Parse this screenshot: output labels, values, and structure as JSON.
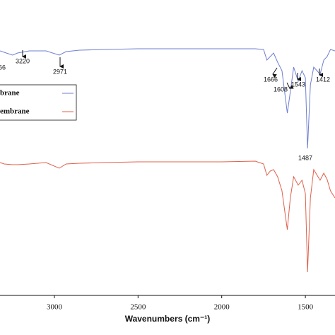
{
  "chart_data": {
    "type": "line",
    "xlabel": "Wavenumbers (cm⁻¹)",
    "x": [
      3325,
      3300,
      3250,
      3220,
      3150,
      3050,
      2971,
      2930,
      2850,
      2700,
      2500,
      2000,
      1800,
      1750,
      1730,
      1710,
      1690,
      1666,
      1640,
      1608,
      1590,
      1570,
      1543,
      1520,
      1500,
      1487,
      1470,
      1450,
      1412,
      1390,
      1370,
      1350,
      1323
    ],
    "series": [
      {
        "name": "brane",
        "color": "#6f7fd0",
        "values": [
          86.5,
          86,
          85,
          85.75,
          86.5,
          86.5,
          85,
          86.25,
          86.75,
          87,
          87.25,
          87.25,
          87.25,
          87,
          83.25,
          84.5,
          85.75,
          82.5,
          79.5,
          64.5,
          72,
          80.75,
          75.75,
          79.5,
          77,
          52,
          74.5,
          80.75,
          78.25,
          83.25,
          84.5,
          87,
          86.5
        ]
      },
      {
        "name": "embrane",
        "color": "#e0604a",
        "values": [
          47,
          46.5,
          46.25,
          46.25,
          46.5,
          47,
          45,
          46.5,
          46.75,
          47,
          47.25,
          47.25,
          47.5,
          46.5,
          42.5,
          44,
          44.5,
          42,
          37,
          23.25,
          34.5,
          42,
          39,
          40.75,
          36,
          8.25,
          34.5,
          44.5,
          40.75,
          43.25,
          41,
          37,
          34.5
        ]
      }
    ],
    "xlim": [
      3325,
      1323
    ],
    "ylim": [
      0,
      104.5
    ],
    "xticks": [
      3000,
      2500,
      2000,
      1500
    ],
    "legend": "upper left",
    "annotations": [
      "66",
      "3220",
      "2971",
      "1666",
      "1608",
      "1543",
      "1487",
      "1412"
    ]
  }
}
